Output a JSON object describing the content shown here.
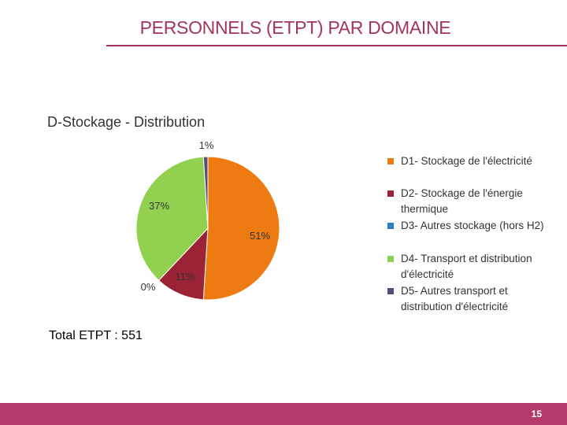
{
  "slide": {
    "title": "PERSONNELS (ETPT) PAR DOMAINE",
    "total": "Total ETPT : 551",
    "page_number": "15"
  },
  "chart_data": {
    "type": "pie",
    "title": "D-Stockage - Distribution",
    "slices": [
      {
        "name": "D1- Stockage de l'électricité",
        "value": 51,
        "label": "51%",
        "color": "#ee7b12"
      },
      {
        "name": "D2- Stockage de l'énergie thermique",
        "value": 11,
        "label": "11%",
        "color": "#9b2335"
      },
      {
        "name": "D3- Autres stockage (hors H2)",
        "value": 0,
        "label": "0%",
        "color": "#2e7fbf"
      },
      {
        "name": "D4- Transport et distribution d'électricité",
        "value": 37,
        "label": "37%",
        "color": "#92d050"
      },
      {
        "name": "D5- Autres transport et distribution d'électricité",
        "value": 1,
        "label": "1%",
        "color": "#5b4a78"
      }
    ]
  },
  "colors": {
    "accent": "#a3345e",
    "footer": "#b5396a"
  }
}
